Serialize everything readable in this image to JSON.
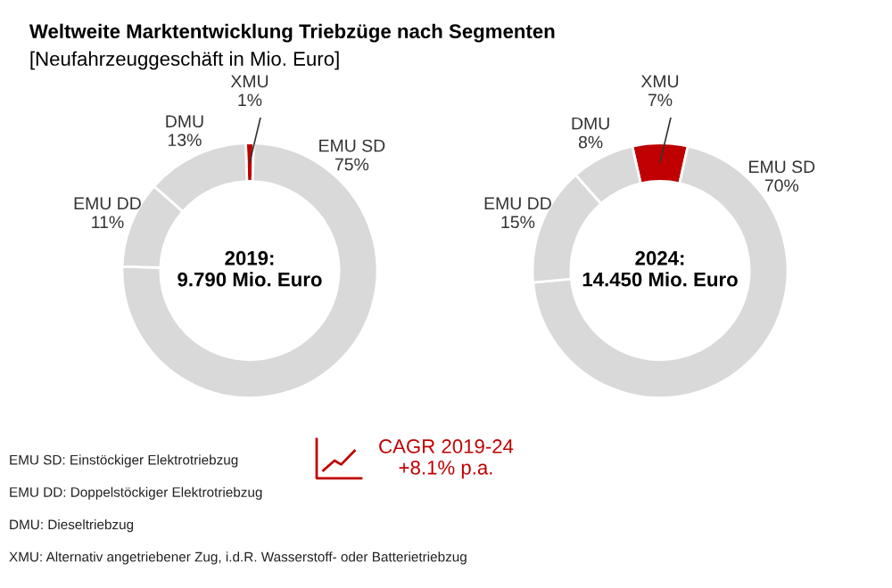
{
  "chart_data": [
    {
      "type": "donut",
      "title": "Weltweite Marktentwicklung Triebzüge nach Segmenten",
      "subtitle": "[Neufahrzeuggeschäft in Mio. Euro]",
      "categories": [
        "XMU",
        "EMU SD",
        "EMU DD",
        "DMU"
      ],
      "values": [
        1,
        75,
        11,
        13
      ],
      "colors": [
        "#c00000",
        "#d9d9d9",
        "#d9d9d9",
        "#d9d9d9"
      ],
      "value_labels": [
        "1%",
        "75%",
        "11%",
        "13%"
      ],
      "annotations": [
        "2019:\n9.790 Mio. Euro",
        "EMU SD: Einstöckiger Elektrotriebzug",
        "EMU DD: Doppelstöckiger Elektrotriebzug",
        "DMU: Dieseltriebzug",
        "XMU: Alternativ angetriebener Zug, i.d.R. Wasserstoff- oder Batterietriebzug"
      ]
    },
    {
      "type": "donut",
      "categories": [
        "XMU",
        "EMU SD",
        "EMU DD",
        "DMU"
      ],
      "values": [
        7,
        70,
        15,
        8
      ],
      "colors": [
        "#c00000",
        "#d9d9d9",
        "#d9d9d9",
        "#d9d9d9"
      ],
      "value_labels": [
        "7%",
        "70%",
        "15%",
        "8%"
      ],
      "annotations": [
        "2024:\n14.450 Mio. Euro",
        "CAGR 2019-24\n+8.1% p.a."
      ]
    }
  ]
}
